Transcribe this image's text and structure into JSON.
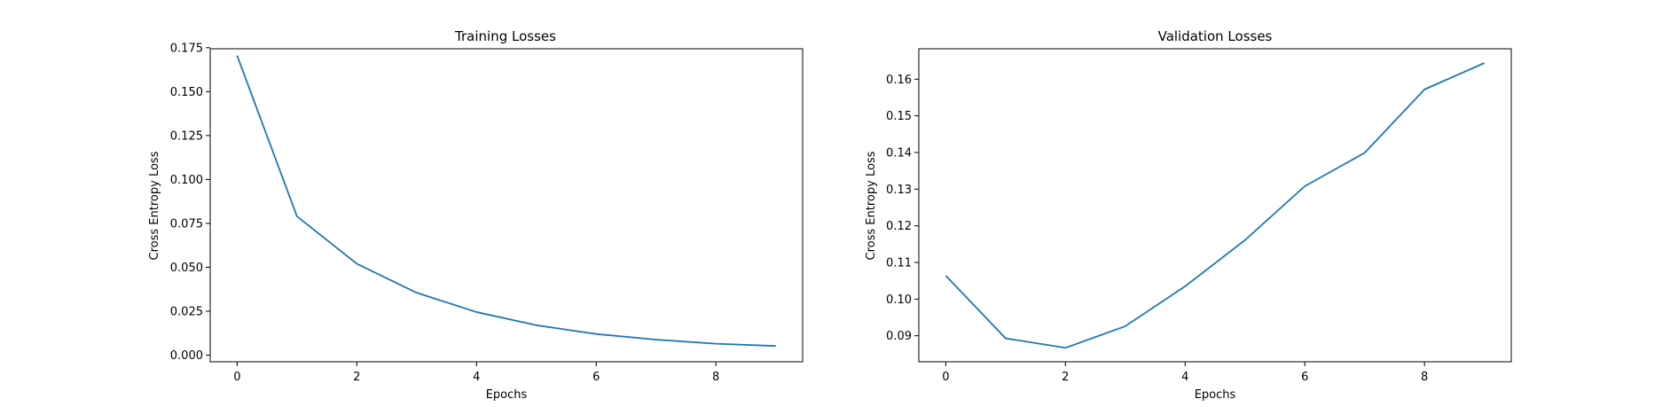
{
  "chart_data": [
    {
      "type": "line",
      "title": "Training Losses",
      "xlabel": "Epochs",
      "ylabel": "Cross Entropy Loss",
      "x": [
        0,
        1,
        2,
        3,
        4,
        5,
        6,
        7,
        8,
        9
      ],
      "series": [
        {
          "values": [
            0.1705,
            0.079,
            0.052,
            0.0355,
            0.0245,
            0.017,
            0.012,
            0.0088,
            0.0065,
            0.0052
          ]
        }
      ],
      "xlim": [
        -0.45,
        9.45
      ],
      "ylim": [
        -0.0038,
        0.1744
      ],
      "xticks": [
        0,
        2,
        4,
        6,
        8
      ],
      "yticks": [
        0.0,
        0.025,
        0.05,
        0.075,
        0.1,
        0.125,
        0.15,
        0.175
      ],
      "ytick_labels": [
        "0.000",
        "0.025",
        "0.050",
        "0.075",
        "0.100",
        "0.125",
        "0.150",
        "0.175"
      ],
      "grid": false,
      "line_color": "#1f77b4"
    },
    {
      "type": "line",
      "title": "Validation Losses",
      "xlabel": "Epochs",
      "ylabel": "Cross Entropy Loss",
      "x": [
        0,
        1,
        2,
        3,
        4,
        5,
        6,
        7,
        8,
        9
      ],
      "series": [
        {
          "values": [
            0.1064,
            0.0893,
            0.0867,
            0.0926,
            0.1035,
            0.1161,
            0.1308,
            0.1399,
            0.1572,
            0.1644
          ]
        }
      ],
      "xlim": [
        -0.45,
        9.45
      ],
      "ylim": [
        0.0829,
        0.1683
      ],
      "xticks": [
        0,
        2,
        4,
        6,
        8
      ],
      "yticks": [
        0.09,
        0.1,
        0.11,
        0.12,
        0.13,
        0.14,
        0.15,
        0.16
      ],
      "ytick_labels": [
        "0.09",
        "0.10",
        "0.11",
        "0.12",
        "0.13",
        "0.14",
        "0.15",
        "0.16"
      ],
      "grid": false,
      "line_color": "#1f77b4"
    }
  ]
}
